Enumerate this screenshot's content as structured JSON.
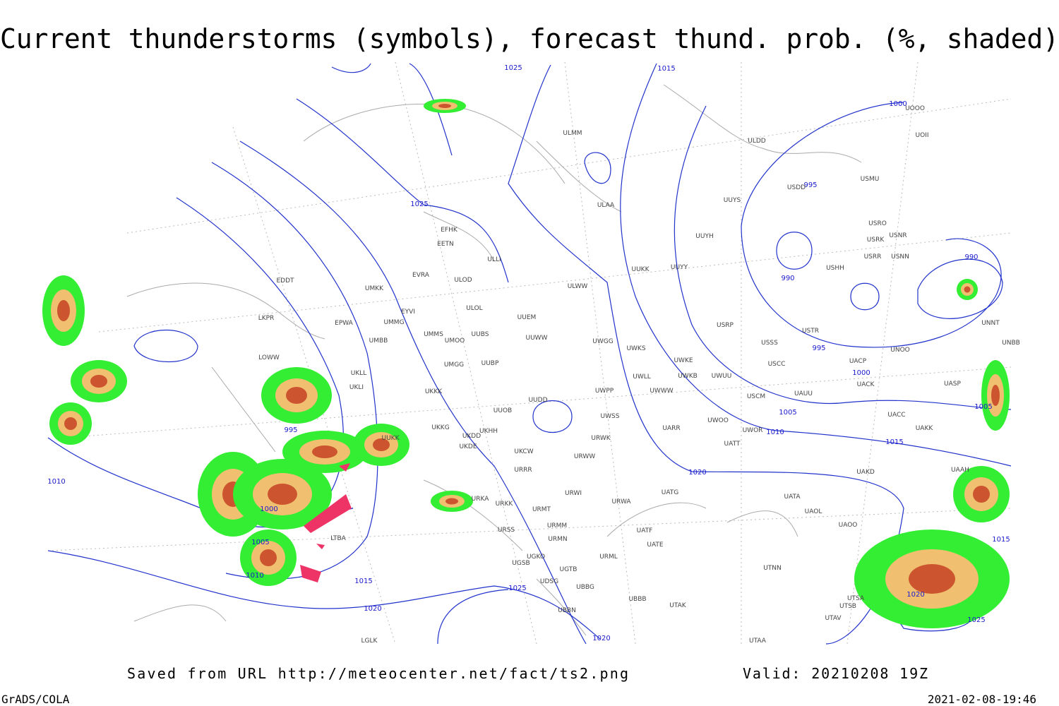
{
  "header": {
    "title": "Current thunderstorms (symbols), forecast thund. prob. (%, shaded)"
  },
  "isobar_labels": [
    "1025",
    "1015",
    "1025",
    "1000",
    "995",
    "990",
    "990",
    "995",
    "1000",
    "1005",
    "1010",
    "1015",
    "1005",
    "1020",
    "995",
    "1000",
    "1005",
    "1010",
    "1015",
    "1020",
    "1025",
    "1020",
    "1010",
    "1020",
    "1025",
    "1015"
  ],
  "stations": [
    "EFHK",
    "EETN",
    "EVRA",
    "ULLI",
    "ULOD",
    "ULOL",
    "UMKK",
    "EYVI",
    "UMMG",
    "EPWA",
    "LKPR",
    "EDDT",
    "UMBB",
    "UMMS",
    "UMOO",
    "UUBS",
    "UUEM",
    "UUWW",
    "UMGG",
    "UUBP",
    "UKLL",
    "UKLI",
    "UKKK",
    "LOWW",
    "UUOB",
    "UUDD",
    "UWPP",
    "UWGG",
    "UWKS",
    "UWLL",
    "UWWW",
    "UWKE",
    "UWKB",
    "UWUU",
    "UWSS",
    "UKKG",
    "UKDD",
    "UKHH",
    "UKDE",
    "UUKK",
    "UKCW",
    "URWW",
    "URWK",
    "URRR",
    "UARR",
    "UWOO",
    "UWOR",
    "UATT",
    "UAKD",
    "UATG",
    "URWI",
    "URWA",
    "UATA",
    "UAOL",
    "UAOO",
    "UATF",
    "UATE",
    "URML",
    "URMM",
    "URMN",
    "URMT",
    "URKK",
    "URKA",
    "URSS",
    "UGKO",
    "UGSB",
    "UGTB",
    "UDSG",
    "UBBG",
    "UBBN",
    "UBBB",
    "UTAK",
    "UTNN",
    "UTSA",
    "UTSB",
    "UTAV",
    "UTAA",
    "LGLK",
    "LTBA",
    "ULAA",
    "ULMM",
    "ULDD",
    "ULWW",
    "UUYY",
    "UUYH",
    "UUYS",
    "USDD",
    "USMU",
    "USRO",
    "USRK",
    "USNR",
    "USRR",
    "USNN",
    "USHH",
    "USTR",
    "USSS",
    "USCC",
    "USCM",
    "UAUU",
    "UACP",
    "UACK",
    "UASP",
    "UACC",
    "UAKK",
    "UAAH",
    "UNNT",
    "UNBB",
    "UNOO",
    "UOOO",
    "UOII",
    "USRP",
    "UUKK"
  ],
  "footer": {
    "source": "Saved from URL http://meteocenter.net/fact/ts2.png",
    "valid": "Valid: 20210208 19Z",
    "software": "GrADS/COLA",
    "timestamp": "2021-02-08-19:46"
  }
}
